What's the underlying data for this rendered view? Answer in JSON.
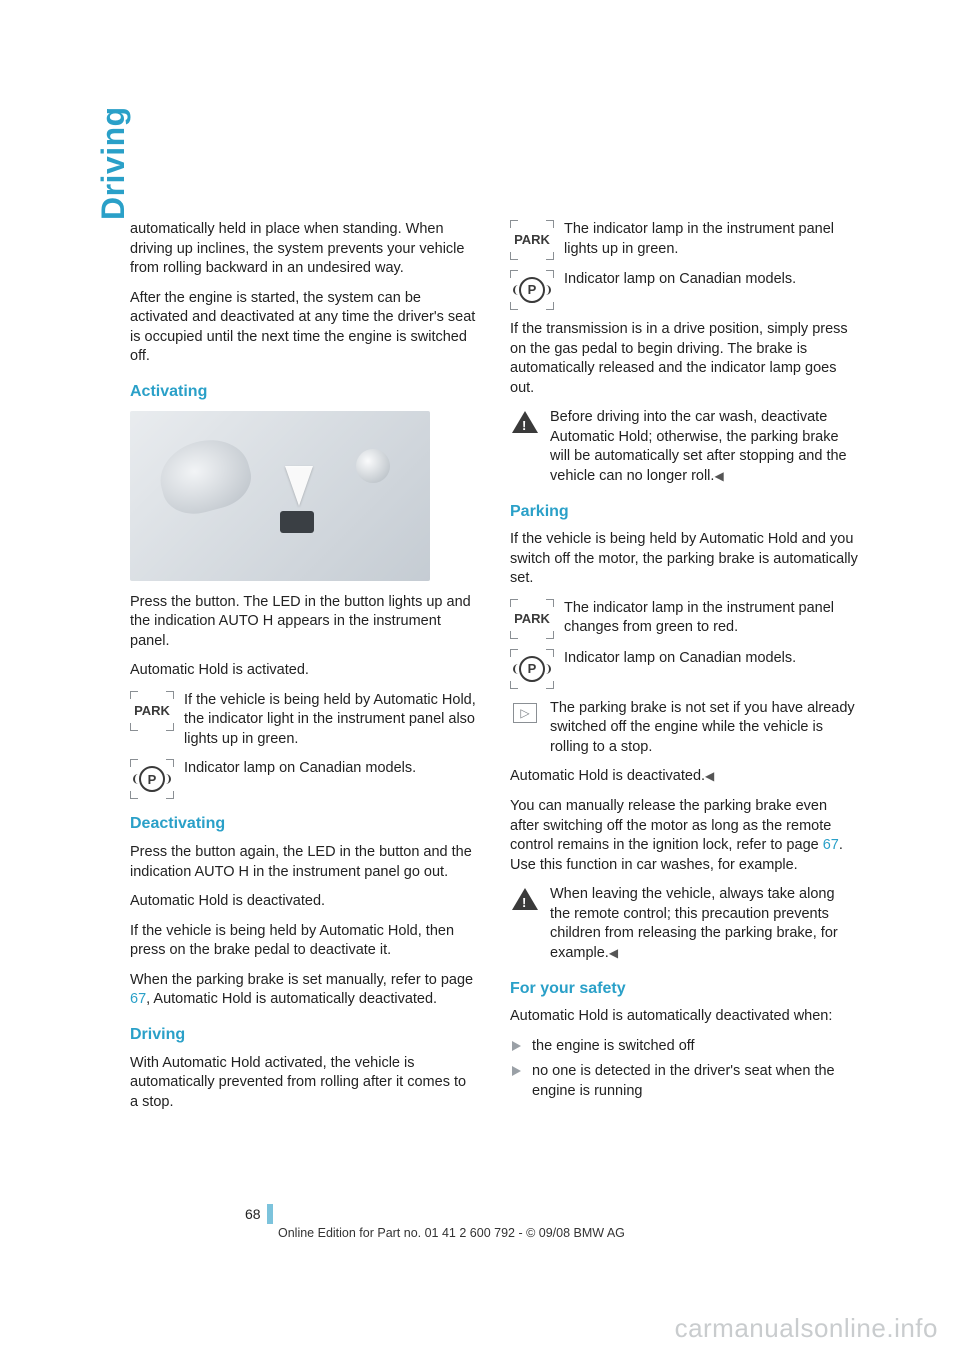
{
  "side_tab": "Driving",
  "left": {
    "intro": "automatically held in place when standing. When driving up inclines, the system prevents your vehicle from rolling backward in an undesired way.",
    "intro2": "After the engine is started, the system can be activated and deactivated at any time the driver's seat is occupied until the next time the engine is switched off.",
    "activating": {
      "heading": "Activating",
      "p1": "Press the button. The LED in the button lights up and the indication AUTO H appears in the instrument panel.",
      "p2": "Automatic Hold is activated.",
      "park_icon_label": "PARK",
      "park_text": "If the vehicle is being held by Automatic Hold, the indicator light in the instrument panel also lights up in green.",
      "p_icon_label": "P",
      "p_text": "Indicator lamp on Canadian models."
    },
    "deactivating": {
      "heading": "Deactivating",
      "p1": "Press the button again, the LED in the button and the indication AUTO H in the instrument panel go out.",
      "p2": "Automatic Hold is deactivated.",
      "p3": "If the vehicle is being held by Automatic Hold, then press on the brake pedal to deactivate it.",
      "p4a": "When the parking brake is set manually, refer to page ",
      "p4_ref": "67",
      "p4b": ", Automatic Hold is automatically deactivated."
    },
    "driving": {
      "heading": "Driving",
      "p1": "With Automatic Hold activated, the vehicle is automatically prevented from rolling after it comes to a stop."
    }
  },
  "right": {
    "park_icon_label": "PARK",
    "park_text": "The indicator lamp in the instrument panel lights up in green.",
    "p_icon_label": "P",
    "p_text": "Indicator lamp on Canadian models.",
    "p1": "If the transmission is in a drive position, simply press on the gas pedal to begin driving. The brake is automatically released and the indicator lamp goes out.",
    "warn1": "Before driving into the car wash, deactivate Automatic Hold; otherwise, the parking brake will be automatically set after stopping and the vehicle can no longer roll.",
    "end_mark": "◀",
    "parking": {
      "heading": "Parking",
      "p1": "If the vehicle is being held by Automatic Hold and you switch off the motor, the parking brake is automatically set.",
      "park_icon_label": "PARK",
      "park_text": "The indicator lamp in the instrument panel changes from green to red.",
      "p_icon_label": "P",
      "p_text": "Indicator lamp on Canadian models.",
      "note_glyph": "▷",
      "note": "The parking brake is not set if you have already switched off the engine while the vehicle is rolling to a stop.",
      "note2": "Automatic Hold is deactivated.",
      "p2a": "You can manually release the parking brake even after switching off the motor as long as the remote control remains in the ignition lock, refer to page ",
      "p2_ref": "67",
      "p2b": ". Use this function in car washes, for example.",
      "warn2": "When leaving the vehicle, always take along the remote control; this precaution prevents children from releasing the parking brake, for example."
    },
    "safety": {
      "heading": "For your safety",
      "p1": "Automatic Hold is automatically deactivated when:",
      "b1": "the engine is switched off",
      "b2": "no one is detected in the driver's seat when the engine is running"
    }
  },
  "page_number": "68",
  "footer": "Online Edition for Part no. 01 41 2 600 792 - © 09/08 BMW AG",
  "watermark": "carmanualsonline.info",
  "colors": {
    "accent": "#2aa0c8",
    "tick": "#7cc3dc",
    "text": "#222222",
    "frame": "#8a8f94"
  }
}
